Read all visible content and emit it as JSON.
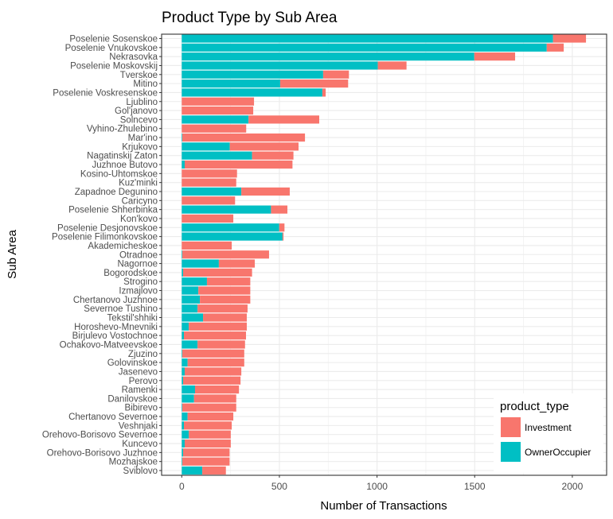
{
  "chart_data": {
    "type": "bar",
    "orientation": "horizontal",
    "stacked": true,
    "title": "Product Type by Sub Area",
    "xlabel": "Number of Transactions",
    "ylabel": "Sub Area",
    "xlim": [
      -90,
      2180
    ],
    "xticks": [
      0,
      500,
      1000,
      1500,
      2000
    ],
    "xtick_labels": [
      "0",
      "500",
      "1000",
      "1500",
      "2000"
    ],
    "grid": true,
    "legend": {
      "title": "product_type",
      "position": "bottom-right-inside",
      "entries": [
        {
          "name": "Investment",
          "color": "#F8766D"
        },
        {
          "name": "OwnerOccupier",
          "color": "#00BFC4"
        }
      ]
    },
    "categories": [
      "Poselenie Sosenskoe",
      "Poselenie Vnukovskoe",
      "Nekrasovka",
      "Poselenie Moskovskij",
      "Tverskoe",
      "Mitino",
      "Poselenie Voskresenskoe",
      "Ljublino",
      "Gol'janovo",
      "Solncevo",
      "Vyhino-Zhulebino",
      "Mar'ino",
      "Krjukovo",
      "Nagatinskij Zaton",
      "Juzhnoe Butovo",
      "Kosino-Uhtomskoe",
      "Kuz'minki",
      "Zapadnoe Degunino",
      "Caricyno",
      "Poselenie Shherbinka",
      "Kon'kovo",
      "Poselenie Desjonovskoe",
      "Poselenie Filimonkovskoe",
      "Akademicheskoe",
      "Otradnoe",
      "Nagornoe",
      "Bogorodskoe",
      "Strogino",
      "Izmajlovo",
      "Chertanovo Juzhnoe",
      "Severnoe Tushino",
      "Tekstil'shhiki",
      "Horoshevo-Mnevniki",
      "Birjulevo Vostochnoe",
      "Ochakovo-Matveevskoe",
      "Zjuzino",
      "Golovinskoe",
      "Jasenevo",
      "Perovo",
      "Ramenki",
      "Danilovskoe",
      "Bibirevo",
      "Chertanovo Severnoe",
      "Veshnjaki",
      "Orehovo-Borisovo Severnoe",
      "Kuncevo",
      "Orehovo-Borisovo Juzhnoe",
      "Mozhajskoe",
      "Sviblovo"
    ],
    "series": [
      {
        "name": "OwnerOccupier",
        "color": "#00BFC4",
        "values": [
          1901,
          1869,
          1498,
          1004,
          724,
          504,
          720,
          0,
          0,
          342,
          0,
          3,
          246,
          360,
          15,
          0,
          0,
          305,
          0,
          457,
          0,
          499,
          516,
          0,
          3,
          190,
          7,
          129,
          85,
          93,
          81,
          109,
          36,
          11,
          81,
          3,
          30,
          15,
          7,
          68,
          63,
          3,
          30,
          11,
          36,
          15,
          7,
          3,
          105
        ]
      },
      {
        "name": "Investment",
        "color": "#F8766D",
        "values": [
          169,
          87,
          209,
          147,
          132,
          348,
          17,
          370,
          366,
          362,
          330,
          628,
          352,
          212,
          552,
          283,
          279,
          248,
          273,
          84,
          264,
          27,
          5,
          256,
          444,
          184,
          353,
          222,
          266,
          258,
          256,
          224,
          297,
          318,
          243,
          317,
          290,
          290,
          294,
          225,
          216,
          276,
          234,
          245,
          215,
          236,
          238,
          242,
          121
        ]
      }
    ]
  }
}
